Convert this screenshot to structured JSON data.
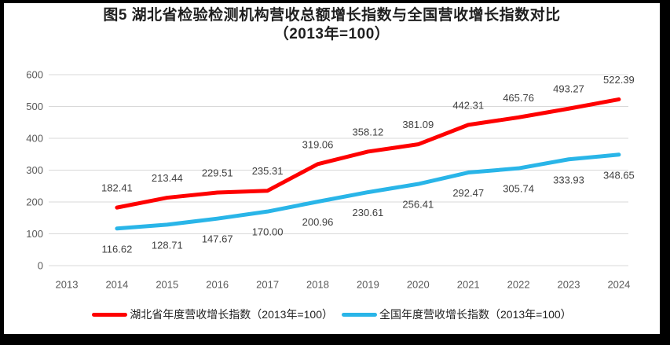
{
  "chart_data": {
    "type": "line",
    "title": "图5 湖北省检验检测机构营收总额增长指数与全国营收增长指数对比",
    "subtitle": "（2013年=100）",
    "categories": [
      "2013",
      "2014",
      "2015",
      "2016",
      "2017",
      "2018",
      "2019",
      "2020",
      "2021",
      "2022",
      "2023",
      "2024"
    ],
    "xlabel": "",
    "ylabel": "",
    "y_axis": {
      "min": 0,
      "max": 600,
      "step": 100,
      "ticks": [
        0,
        100,
        200,
        300,
        400,
        500,
        600
      ]
    },
    "grid": true,
    "legend_position": "bottom",
    "colors": {
      "grid": "#d9d9d9",
      "axis_text": "#595959",
      "data_label_text": "#404040",
      "title_text": "#1f1f1f",
      "frame_border": "#000000",
      "background": "#ffffff"
    },
    "series": [
      {
        "name": "湖北省年度营收增长指数（2013年=100）",
        "color": "#fe0000",
        "first_category": "2014",
        "label_position": "above",
        "values": [
          182.41,
          213.44,
          229.51,
          235.31,
          319.06,
          358.12,
          381.09,
          442.31,
          465.76,
          493.27,
          522.39
        ],
        "labels": [
          "182.41",
          "213.44",
          "229.51",
          "235.31",
          "319.06",
          "358.12",
          "381.09",
          "442.31",
          "465.76",
          "493.27",
          "522.39"
        ]
      },
      {
        "name": "全国年度营收增长指数（2013年=100）",
        "color": "#29b5e8",
        "first_category": "2014",
        "label_position": "below",
        "values": [
          116.62,
          128.71,
          147.67,
          170.0,
          200.96,
          230.61,
          256.41,
          292.47,
          305.74,
          333.93,
          348.65
        ],
        "labels": [
          "116.62",
          "128.71",
          "147.67",
          "170.00",
          "200.96",
          "230.61",
          "256.41",
          "292.47",
          "305.74",
          "333.93",
          "348.65"
        ]
      }
    ]
  }
}
